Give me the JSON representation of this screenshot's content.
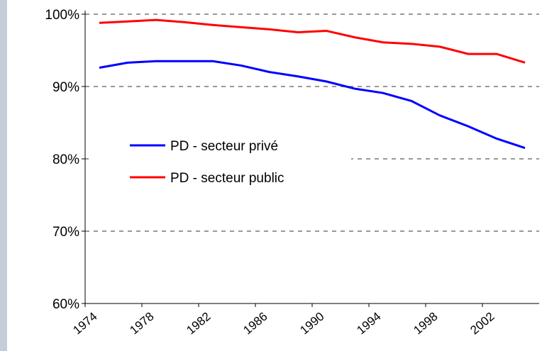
{
  "chart_data": {
    "type": "line",
    "x": [
      1975,
      1977,
      1979,
      1981,
      1983,
      1985,
      1987,
      1989,
      1991,
      1993,
      1995,
      1997,
      1999,
      2001,
      2003,
      2005
    ],
    "series": [
      {
        "name": "PD - secteur privé",
        "color": "#0000ff",
        "values": [
          92.6,
          93.3,
          93.5,
          93.5,
          93.5,
          92.9,
          92.0,
          91.4,
          90.7,
          89.7,
          89.1,
          88.0,
          86.0,
          84.5,
          82.8,
          81.5
        ]
      },
      {
        "name": "PD - secteur public",
        "color": "#ff0000",
        "values": [
          98.8,
          99.0,
          99.2,
          98.9,
          98.5,
          98.2,
          97.9,
          97.5,
          97.7,
          96.8,
          96.1,
          95.9,
          95.5,
          94.5,
          94.5,
          93.3
        ]
      }
    ],
    "xlim": [
      1974,
      2006
    ],
    "xticks": [
      1974,
      1978,
      1982,
      1986,
      1990,
      1994,
      1998,
      2002
    ],
    "ylim": [
      60,
      100
    ],
    "yticks": [
      {
        "value": 60,
        "label": "60%"
      },
      {
        "value": 70,
        "label": "70%"
      },
      {
        "value": 80,
        "label": "80%"
      },
      {
        "value": 90,
        "label": "90%"
      },
      {
        "value": 100,
        "label": "100%"
      }
    ],
    "grid": true,
    "legend": "left"
  }
}
